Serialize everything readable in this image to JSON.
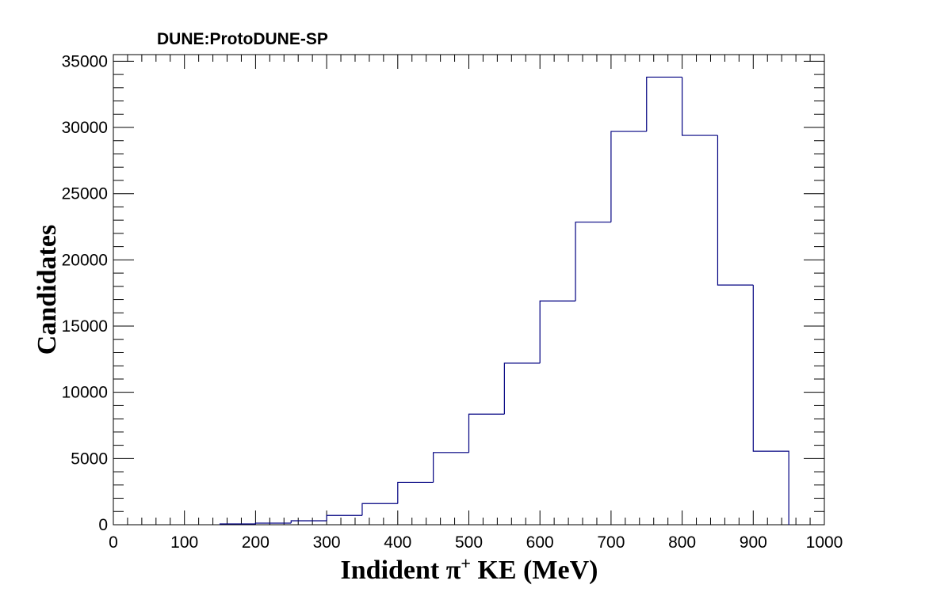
{
  "chart_data": {
    "type": "bar",
    "title": "DUNE:ProtoDUNE-SP",
    "xlabel_main": "Indident  π",
    "xlabel_sup": "+",
    "xlabel_rest": " KE (MeV)",
    "ylabel": "Candidates",
    "xlim": [
      0,
      1000
    ],
    "ylim": [
      0,
      35500
    ],
    "x_ticks": [
      0,
      100,
      200,
      300,
      400,
      500,
      600,
      700,
      800,
      900,
      1000
    ],
    "y_ticks": [
      0,
      5000,
      10000,
      15000,
      20000,
      25000,
      30000,
      35000
    ],
    "grid": false,
    "legend": "none",
    "line_color": "#000080",
    "bins": [
      {
        "low": 150,
        "high": 200,
        "value": 60
      },
      {
        "low": 200,
        "high": 250,
        "value": 120
      },
      {
        "low": 250,
        "high": 300,
        "value": 300
      },
      {
        "low": 300,
        "high": 350,
        "value": 700
      },
      {
        "low": 350,
        "high": 400,
        "value": 1600
      },
      {
        "low": 400,
        "high": 450,
        "value": 3200
      },
      {
        "low": 450,
        "high": 500,
        "value": 5450
      },
      {
        "low": 500,
        "high": 550,
        "value": 8350
      },
      {
        "low": 550,
        "high": 600,
        "value": 12200
      },
      {
        "low": 600,
        "high": 650,
        "value": 16900
      },
      {
        "low": 650,
        "high": 700,
        "value": 22850
      },
      {
        "low": 700,
        "high": 750,
        "value": 29700
      },
      {
        "low": 750,
        "high": 800,
        "value": 33800
      },
      {
        "low": 800,
        "high": 850,
        "value": 29400
      },
      {
        "low": 850,
        "high": 900,
        "value": 18100
      },
      {
        "low": 900,
        "high": 950,
        "value": 5550
      }
    ]
  }
}
